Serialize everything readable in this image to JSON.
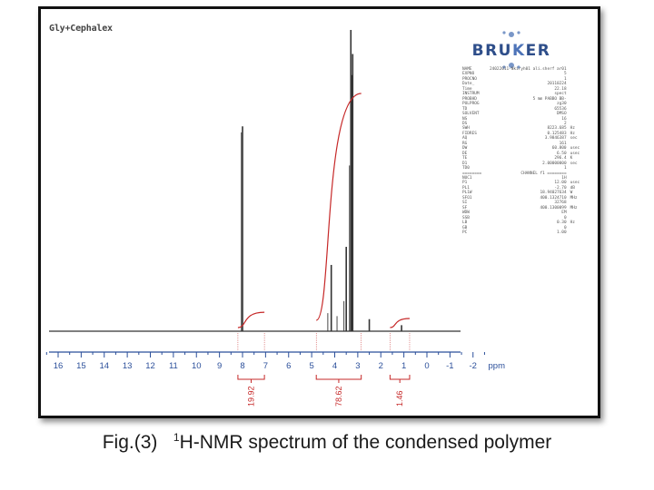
{
  "figure": {
    "caption_prefix": "Fig.(3)",
    "caption_sup": "1",
    "caption_main": "H-NMR spectrum of the condensed polymer",
    "sample_title": "Gly+Cephalex"
  },
  "logo": {
    "text_before": "BRU",
    "text_x": "K",
    "text_after": "ER"
  },
  "colors": {
    "spectrum": "#333333",
    "integral": "#c62828",
    "axis": "#2b4f9a",
    "label": "#c62828"
  },
  "parameters": [
    {
      "name": "NAME",
      "value": "24022011-Nkiryh01 ali.sherf ar01",
      "unit": ""
    },
    {
      "name": "EXPNO",
      "value": "5",
      "unit": ""
    },
    {
      "name": "PROCNO",
      "value": "1",
      "unit": ""
    },
    {
      "name": "Date_",
      "value": "20110224",
      "unit": ""
    },
    {
      "name": "Time",
      "value": "22.18",
      "unit": ""
    },
    {
      "name": "INSTRUM",
      "value": "spect",
      "unit": ""
    },
    {
      "name": "PROBHD",
      "value": "5 mm PABBO BB-",
      "unit": ""
    },
    {
      "name": "PULPROG",
      "value": "zg30",
      "unit": ""
    },
    {
      "name": "TD",
      "value": "65536",
      "unit": ""
    },
    {
      "name": "SOLVENT",
      "value": "DMSO",
      "unit": ""
    },
    {
      "name": "NS",
      "value": "16",
      "unit": ""
    },
    {
      "name": "DS",
      "value": "2",
      "unit": ""
    },
    {
      "name": "SWH",
      "value": "8223.685",
      "unit": "Hz"
    },
    {
      "name": "FIDRES",
      "value": "0.125483",
      "unit": "Hz"
    },
    {
      "name": "AQ",
      "value": "3.9846387",
      "unit": "sec"
    },
    {
      "name": "RG",
      "value": "161",
      "unit": ""
    },
    {
      "name": "DW",
      "value": "60.800",
      "unit": "usec"
    },
    {
      "name": "DE",
      "value": "6.50",
      "unit": "usec"
    },
    {
      "name": "TE",
      "value": "296.4",
      "unit": "K"
    },
    {
      "name": "D1",
      "value": "2.00000000",
      "unit": "sec"
    },
    {
      "name": "TD0",
      "value": "1",
      "unit": ""
    },
    {
      "name": "",
      "value": "",
      "unit": ""
    },
    {
      "name": "========",
      "value": "CHANNEL f1 ========",
      "unit": ""
    },
    {
      "name": "NUC1",
      "value": "1H",
      "unit": ""
    },
    {
      "name": "P1",
      "value": "12.00",
      "unit": "usec"
    },
    {
      "name": "PL1",
      "value": "-2.70",
      "unit": "dB"
    },
    {
      "name": "PL1W",
      "value": "18.94027634",
      "unit": "W"
    },
    {
      "name": "SFO1",
      "value": "400.1324710",
      "unit": "MHz"
    },
    {
      "name": "SI",
      "value": "32768",
      "unit": ""
    },
    {
      "name": "SF",
      "value": "400.1300099",
      "unit": "MHz"
    },
    {
      "name": "WDW",
      "value": "EM",
      "unit": ""
    },
    {
      "name": "SSB",
      "value": "0",
      "unit": ""
    },
    {
      "name": "LB",
      "value": "0.30",
      "unit": "Hz"
    },
    {
      "name": "GB",
      "value": "0",
      "unit": ""
    },
    {
      "name": "PC",
      "value": "1.00",
      "unit": ""
    }
  ],
  "chart_data": {
    "type": "line",
    "title": "Gly+Cephalex",
    "xlabel": "ppm",
    "xlim": [
      16.5,
      -3.5
    ],
    "x_reversed": true,
    "ticks": [
      16,
      15,
      14,
      13,
      12,
      11,
      10,
      9,
      8,
      7,
      6,
      5,
      4,
      3,
      2,
      1,
      0,
      -1,
      -2
    ],
    "peaks": [
      {
        "ppm": 8.0,
        "relative_height": 0.68
      },
      {
        "ppm": 4.15,
        "relative_height": 0.22
      },
      {
        "ppm": 3.5,
        "relative_height": 0.28
      },
      {
        "ppm": 3.3,
        "relative_height": 1.0
      },
      {
        "ppm": 3.22,
        "relative_height": 0.92
      },
      {
        "ppm": 2.5,
        "relative_height": 0.04
      },
      {
        "ppm": 1.1,
        "relative_height": 0.02
      }
    ],
    "integrals": [
      {
        "from": 8.2,
        "to": 7.05,
        "label": "19.92",
        "rise": 0.25
      },
      {
        "from": 4.8,
        "to": 2.85,
        "label": "78.62",
        "rise": 1.0
      },
      {
        "from": 1.6,
        "to": 0.75,
        "label": "1.46",
        "rise": 0.04
      }
    ]
  }
}
